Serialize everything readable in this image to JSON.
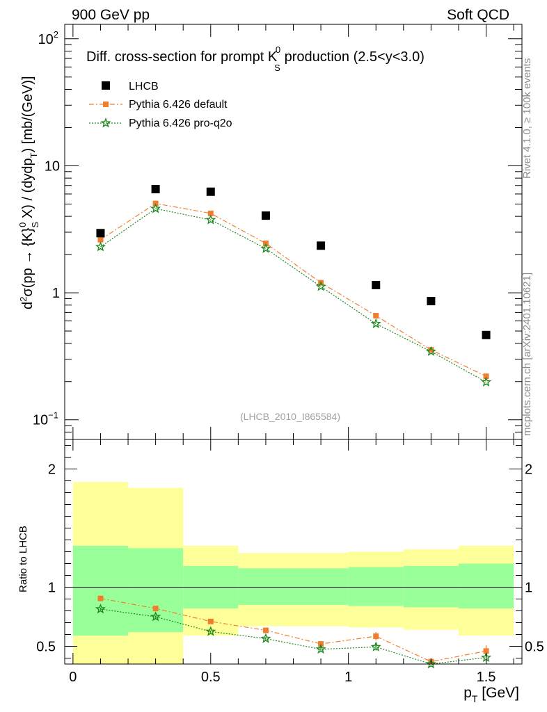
{
  "header": {
    "left": "900 GeV pp",
    "right": "Soft QCD"
  },
  "side_labels": {
    "rivet": "Rivet 4.1.0, ≥ 100k events",
    "mcplots": "mcplots.cern.ch [arXiv:2401.10621]"
  },
  "chart_data": [
    {
      "type": "scatter",
      "panel": "main",
      "title_main": "Diff. cross-section for prompt K",
      "title_sup": "0",
      "title_sub": "S",
      "title_rest": " production (2.5<y<3.0)",
      "analysis_label": "(LHCB_2010_I865584)",
      "ylabel_main": "d²σ(pp → {K}⁰ₛ X) / (dydpₜ) [mb/(GeV)]",
      "yscale": "log",
      "ylim": [
        0.07,
        130
      ],
      "xlim": [
        -0.03,
        1.63
      ],
      "y_ticks": [
        {
          "value": 0.1,
          "label": "10",
          "sup": "−1"
        },
        {
          "value": 1,
          "label": "1",
          "sup": ""
        },
        {
          "value": 10,
          "label": "10",
          "sup": ""
        },
        {
          "value": 100,
          "label": "10",
          "sup": "2"
        }
      ],
      "legend": [
        {
          "name": "LHCB",
          "color": "#000000",
          "marker": "square"
        },
        {
          "name": "Pythia 6.426 default",
          "color": "#f07e2e",
          "marker": "smallsquare"
        },
        {
          "name": "Pythia 6.426 pro-q2o",
          "color": "#1e8a1e",
          "marker": "star"
        }
      ],
      "x": [
        0.1,
        0.3,
        0.5,
        0.7,
        0.9,
        1.1,
        1.3,
        1.5
      ],
      "series": [
        {
          "name": "LHCB",
          "values": [
            2.95,
            6.55,
            6.25,
            4.05,
            2.35,
            1.15,
            0.86,
            0.465
          ]
        },
        {
          "name": "Pythia 6.426 default",
          "values": [
            2.62,
            5.05,
            4.22,
            2.45,
            1.2,
            0.66,
            0.355,
            0.22
          ]
        },
        {
          "name": "Pythia 6.426 pro-q2o",
          "values": [
            2.3,
            4.6,
            3.75,
            2.23,
            1.12,
            0.57,
            0.345,
            0.198
          ]
        }
      ]
    },
    {
      "type": "line",
      "panel": "ratio",
      "ylabel": "Ratio to LHCB",
      "ylim": [
        0.35,
        2.25
      ],
      "xlim": [
        -0.03,
        1.63
      ],
      "y_ticks": [
        0.5,
        1,
        2
      ],
      "x_ticks": [
        {
          "value": 0,
          "label": "0"
        },
        {
          "value": 0.5,
          "label": "0.5"
        },
        {
          "value": 1,
          "label": "1"
        },
        {
          "value": 1.5,
          "label": "1.5"
        }
      ],
      "xlabel_main": "p",
      "xlabel_sub": "T",
      "xlabel_rest": " [GeV]",
      "bins": [
        {
          "lo": 0.0,
          "hi": 0.2,
          "stat_lo": 0.59,
          "stat_hi": 1.35,
          "tot_lo": 0.35,
          "tot_hi": 1.89
        },
        {
          "lo": 0.2,
          "hi": 0.4,
          "stat_lo": 0.62,
          "stat_hi": 1.33,
          "tot_lo": 0.35,
          "tot_hi": 1.84
        },
        {
          "lo": 0.4,
          "hi": 0.6,
          "stat_lo": 0.82,
          "stat_hi": 1.18,
          "tot_lo": 0.59,
          "tot_hi": 1.35
        },
        {
          "lo": 0.6,
          "hi": 0.8,
          "stat_lo": 0.85,
          "stat_hi": 1.16,
          "tot_lo": 0.67,
          "tot_hi": 1.29
        },
        {
          "lo": 0.8,
          "hi": 1.0,
          "stat_lo": 0.85,
          "stat_hi": 1.16,
          "tot_lo": 0.67,
          "tot_hi": 1.29
        },
        {
          "lo": 1.0,
          "hi": 1.2,
          "stat_lo": 0.84,
          "stat_hi": 1.17,
          "tot_lo": 0.66,
          "tot_hi": 1.3
        },
        {
          "lo": 1.2,
          "hi": 1.4,
          "stat_lo": 0.83,
          "stat_hi": 1.18,
          "tot_lo": 0.64,
          "tot_hi": 1.32
        },
        {
          "lo": 1.4,
          "hi": 1.6,
          "stat_lo": 0.82,
          "stat_hi": 1.2,
          "tot_lo": 0.59,
          "tot_hi": 1.35
        }
      ],
      "x": [
        0.1,
        0.3,
        0.5,
        0.7,
        0.9,
        1.1,
        1.3,
        1.5
      ],
      "series": [
        {
          "name": "Pythia 6.426 default",
          "values": [
            0.905,
            0.82,
            0.71,
            0.635,
            0.52,
            0.585,
            0.37,
            0.46
          ],
          "err": [
            0.01,
            0.01,
            0.01,
            0.012,
            0.025,
            0.035,
            0.03,
            0.05
          ]
        },
        {
          "name": "Pythia 6.426 pro-q2o",
          "values": [
            0.815,
            0.75,
            0.625,
            0.565,
            0.475,
            0.495,
            0.35,
            0.405
          ],
          "err": [
            0.01,
            0.01,
            0.01,
            0.012,
            0.02,
            0.03,
            0.03,
            0.04
          ]
        }
      ]
    }
  ]
}
